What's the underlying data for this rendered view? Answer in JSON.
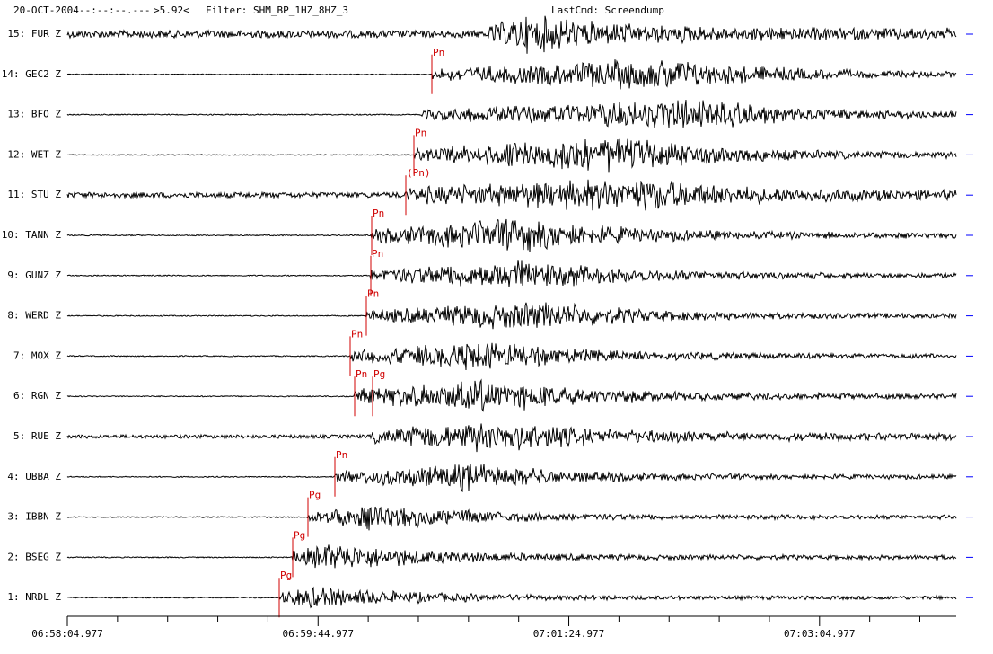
{
  "header": {
    "date": "20-OCT-2004",
    "time": "--:--:--.---",
    "magnitude": ">5.92<",
    "filter": "Filter: SHM_BP_1HZ_8HZ_3",
    "last_command": "LastCmd: Screendump"
  },
  "traces": [
    {
      "label": "15: FUR Z",
      "picks": []
    },
    {
      "label": "14: GEC2 Z",
      "picks": [
        "Pn"
      ]
    },
    {
      "label": "13: BFO Z",
      "picks": []
    },
    {
      "label": "12: WET Z",
      "picks": [
        "Pn"
      ]
    },
    {
      "label": "11: STU Z",
      "picks": [
        "(Pn)"
      ]
    },
    {
      "label": "10: TANN Z",
      "picks": [
        "Pn"
      ]
    },
    {
      "label": "9: GUNZ Z",
      "picks": [
        "Pn"
      ]
    },
    {
      "label": "8: WERD Z",
      "picks": [
        "Pn"
      ]
    },
    {
      "label": "7: MOX Z",
      "picks": [
        "Pn"
      ]
    },
    {
      "label": "6: RGN Z",
      "picks": [
        "Pn",
        "Pg"
      ]
    },
    {
      "label": "5: RUE Z",
      "picks": []
    },
    {
      "label": "4: UBBA Z",
      "picks": [
        "Pn"
      ]
    },
    {
      "label": "3: IBBN Z",
      "picks": [
        "Pg"
      ]
    },
    {
      "label": "2: BSEG Z",
      "picks": [
        "Pg"
      ]
    },
    {
      "label": "1: NRDL Z",
      "picks": [
        "Pg"
      ]
    }
  ],
  "time_axis": {
    "labels": [
      "06:58:04.977",
      "06:59:44.977",
      "07:01:24.977",
      "07:03:04.977"
    ]
  }
}
